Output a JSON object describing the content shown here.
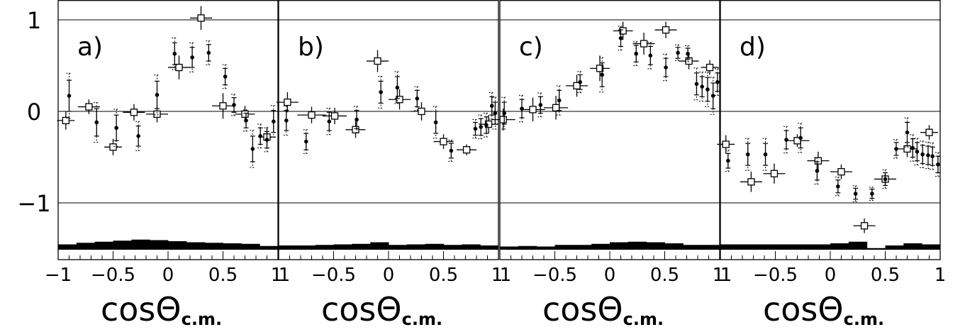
{
  "chart_data": {
    "type": "scatter",
    "y_ticks": [
      {
        "value": 1,
        "label": "1"
      },
      {
        "value": 0,
        "label": "0"
      },
      {
        "value": -1,
        "label": "−1"
      }
    ],
    "ylim": [
      -1.6,
      1.1
    ],
    "xlim": [
      -1,
      1
    ],
    "reference_lines": [
      1,
      0,
      -1
    ],
    "x_ticks": [
      [
        "−1",
        "−0.5",
        "0",
        "0.5",
        "1"
      ],
      [
        "1",
        "−0.5",
        "0",
        "0.5",
        "1"
      ],
      [
        "1",
        "−0.5",
        "0",
        "0.5",
        "1"
      ],
      [
        "1",
        "−0.5",
        "0",
        "0.5",
        "1"
      ]
    ],
    "xlabel": "cosΘ",
    "xlabel_subscript": "c.m.",
    "panels": [
      {
        "label": "a)",
        "filled": [
          {
            "x": -0.9,
            "y": 0.17,
            "e": 0.17
          },
          {
            "x": -0.65,
            "y": -0.12,
            "e": 0.15
          },
          {
            "x": -0.47,
            "y": -0.18,
            "e": 0.14
          },
          {
            "x": -0.27,
            "y": -0.27,
            "e": 0.11
          },
          {
            "x": -0.1,
            "y": 0.18,
            "e": 0.15
          },
          {
            "x": 0.06,
            "y": 0.63,
            "e": 0.12
          },
          {
            "x": 0.22,
            "y": 0.59,
            "e": 0.11
          },
          {
            "x": 0.37,
            "y": 0.64,
            "e": 0.09
          },
          {
            "x": 0.52,
            "y": 0.38,
            "e": 0.09
          },
          {
            "x": 0.6,
            "y": 0.07,
            "e": 0.08
          },
          {
            "x": 0.71,
            "y": -0.1,
            "e": 0.08
          },
          {
            "x": 0.77,
            "y": -0.41,
            "e": 0.14
          },
          {
            "x": 0.84,
            "y": -0.27,
            "e": 0.09
          },
          {
            "x": 0.9,
            "y": -0.31,
            "e": 0.09
          },
          {
            "x": 0.96,
            "y": -0.11,
            "e": 0.12
          }
        ],
        "open": [
          {
            "x": -0.93,
            "y": -0.1,
            "xe": 0.08,
            "ye": 0.1
          },
          {
            "x": -0.72,
            "y": 0.05,
            "xe": 0.1,
            "ye": 0.08
          },
          {
            "x": -0.5,
            "y": -0.39,
            "xe": 0.08,
            "ye": 0.09
          },
          {
            "x": -0.31,
            "y": -0.01,
            "xe": 0.1,
            "ye": 0.09
          },
          {
            "x": -0.1,
            "y": -0.03,
            "xe": 0.1,
            "ye": 0.09
          },
          {
            "x": 0.1,
            "y": 0.48,
            "xe": 0.1,
            "ye": 0.13
          },
          {
            "x": 0.3,
            "y": 1.02,
            "xe": 0.1,
            "ye": 0.13
          },
          {
            "x": 0.5,
            "y": 0.06,
            "xe": 0.1,
            "ye": 0.14
          },
          {
            "x": 0.7,
            "y": -0.03,
            "xe": 0.09,
            "ye": 0.09
          },
          {
            "x": 0.9,
            "y": -0.28,
            "xe": 0.08,
            "ye": 0.11
          }
        ],
        "hist": [
          0.1,
          0.13,
          0.15,
          0.17,
          0.19,
          0.18,
          0.16,
          0.14,
          0.13,
          0.12,
          0.11,
          0.07
        ]
      },
      {
        "label": "b)",
        "filled": [
          {
            "x": -0.93,
            "y": -0.1,
            "e": 0.11
          },
          {
            "x": -0.75,
            "y": -0.33,
            "e": 0.09
          },
          {
            "x": -0.54,
            "y": -0.11,
            "e": 0.1
          },
          {
            "x": -0.29,
            "y": -0.09,
            "e": 0.1
          },
          {
            "x": -0.07,
            "y": 0.21,
            "e": 0.12
          },
          {
            "x": 0.08,
            "y": 0.26,
            "e": 0.12
          },
          {
            "x": 0.26,
            "y": 0.14,
            "e": 0.09
          },
          {
            "x": 0.43,
            "y": -0.12,
            "e": 0.12
          },
          {
            "x": 0.57,
            "y": -0.43,
            "e": 0.08
          },
          {
            "x": 0.79,
            "y": -0.19,
            "e": 0.07
          },
          {
            "x": 0.84,
            "y": -0.17,
            "e": 0.09
          },
          {
            "x": 0.89,
            "y": -0.15,
            "e": 0.09
          },
          {
            "x": 0.94,
            "y": 0.06,
            "e": 0.1
          },
          {
            "x": 0.97,
            "y": -0.02,
            "e": 0.12
          }
        ],
        "open": [
          {
            "x": -0.92,
            "y": 0.1,
            "xe": 0.1,
            "ye": 0.11
          },
          {
            "x": -0.7,
            "y": -0.04,
            "xe": 0.13,
            "ye": 0.09
          },
          {
            "x": -0.49,
            "y": -0.05,
            "xe": 0.11,
            "ye": 0.09
          },
          {
            "x": -0.3,
            "y": -0.2,
            "xe": 0.09,
            "ye": 0.09
          },
          {
            "x": -0.1,
            "y": 0.55,
            "xe": 0.1,
            "ye": 0.12
          },
          {
            "x": 0.1,
            "y": 0.13,
            "xe": 0.1,
            "ye": 0.11
          },
          {
            "x": 0.3,
            "y": 0.0,
            "xe": 0.1,
            "ye": 0.1
          },
          {
            "x": 0.5,
            "y": -0.33,
            "xe": 0.09,
            "ye": 0.08
          },
          {
            "x": 0.71,
            "y": -0.42,
            "xe": 0.09,
            "ye": 0.06
          },
          {
            "x": 0.91,
            "y": -0.14,
            "xe": 0.09,
            "ye": 0.1
          }
        ],
        "hist": [
          0.08,
          0.08,
          0.09,
          0.1,
          0.11,
          0.14,
          0.09,
          0.1,
          0.11,
          0.09,
          0.1,
          0.08
        ]
      },
      {
        "label": "c)",
        "filled": [
          {
            "x": -0.96,
            "y": -0.02,
            "e": 0.12
          },
          {
            "x": -0.8,
            "y": 0.03,
            "e": 0.1
          },
          {
            "x": -0.63,
            "y": 0.07,
            "e": 0.09
          },
          {
            "x": -0.46,
            "y": 0.12,
            "e": 0.11
          },
          {
            "x": -0.27,
            "y": 0.32,
            "e": 0.08
          },
          {
            "x": -0.07,
            "y": 0.4,
            "e": 0.13
          },
          {
            "x": 0.1,
            "y": 0.8,
            "e": 0.09
          },
          {
            "x": 0.24,
            "y": 0.63,
            "e": 0.09
          },
          {
            "x": 0.37,
            "y": 0.61,
            "e": 0.1
          },
          {
            "x": 0.51,
            "y": 0.48,
            "e": 0.1
          },
          {
            "x": 0.62,
            "y": 0.64,
            "e": 0.06
          },
          {
            "x": 0.71,
            "y": 0.63,
            "e": 0.06
          },
          {
            "x": 0.79,
            "y": 0.3,
            "e": 0.12
          },
          {
            "x": 0.84,
            "y": 0.27,
            "e": 0.11
          },
          {
            "x": 0.89,
            "y": 0.24,
            "e": 0.13
          },
          {
            "x": 0.94,
            "y": 0.17,
            "e": 0.14
          },
          {
            "x": 0.98,
            "y": 0.32,
            "e": 0.1
          }
        ],
        "open": [
          {
            "x": -0.97,
            "y": -0.09,
            "xe": 0.11,
            "ye": 0.12
          },
          {
            "x": -0.7,
            "y": 0.02,
            "xe": 0.11,
            "ye": 0.13
          },
          {
            "x": -0.49,
            "y": 0.04,
            "xe": 0.11,
            "ye": 0.13
          },
          {
            "x": -0.3,
            "y": 0.28,
            "xe": 0.1,
            "ye": 0.12
          },
          {
            "x": -0.09,
            "y": 0.47,
            "xe": 0.09,
            "ye": 0.14
          },
          {
            "x": 0.12,
            "y": 0.88,
            "xe": 0.09,
            "ye": 0.1
          },
          {
            "x": 0.31,
            "y": 0.74,
            "xe": 0.1,
            "ye": 0.12
          },
          {
            "x": 0.51,
            "y": 0.89,
            "xe": 0.1,
            "ye": 0.09
          },
          {
            "x": 0.72,
            "y": 0.55,
            "xe": 0.09,
            "ye": 0.09
          },
          {
            "x": 0.91,
            "y": 0.48,
            "xe": 0.08,
            "ye": 0.08
          }
        ],
        "hist": [
          0.06,
          0.07,
          0.06,
          0.09,
          0.09,
          0.11,
          0.14,
          0.15,
          0.14,
          0.12,
          0.09,
          0.09
        ]
      },
      {
        "label": "d)",
        "filled": [
          {
            "x": -0.93,
            "y": -0.54,
            "e": 0.08
          },
          {
            "x": -0.75,
            "y": -0.47,
            "e": 0.12
          },
          {
            "x": -0.59,
            "y": -0.47,
            "e": 0.12
          },
          {
            "x": -0.4,
            "y": -0.31,
            "e": 0.1
          },
          {
            "x": -0.27,
            "y": -0.29,
            "e": 0.11
          },
          {
            "x": -0.12,
            "y": -0.65,
            "e": 0.1
          },
          {
            "x": 0.07,
            "y": -0.82,
            "e": 0.07
          },
          {
            "x": 0.23,
            "y": -0.9,
            "e": 0.06
          },
          {
            "x": 0.38,
            "y": -0.9,
            "e": 0.05
          },
          {
            "x": 0.5,
            "y": -0.74,
            "e": 0.07
          },
          {
            "x": 0.6,
            "y": -0.41,
            "e": 0.07
          },
          {
            "x": 0.7,
            "y": -0.23,
            "e": 0.11
          },
          {
            "x": 0.75,
            "y": -0.4,
            "e": 0.1
          },
          {
            "x": 0.79,
            "y": -0.44,
            "e": 0.1
          },
          {
            "x": 0.84,
            "y": -0.47,
            "e": 0.1
          },
          {
            "x": 0.89,
            "y": -0.48,
            "e": 0.1
          },
          {
            "x": 0.93,
            "y": -0.49,
            "e": 0.1
          },
          {
            "x": 0.98,
            "y": -0.58,
            "e": 0.09
          }
        ],
        "open": [
          {
            "x": -0.95,
            "y": -0.36,
            "xe": 0.08,
            "ye": 0.1
          },
          {
            "x": -0.72,
            "y": -0.77,
            "xe": 0.1,
            "ye": 0.11
          },
          {
            "x": -0.51,
            "y": -0.68,
            "xe": 0.1,
            "ye": 0.11
          },
          {
            "x": -0.3,
            "y": -0.32,
            "xe": 0.11,
            "ye": 0.07
          },
          {
            "x": -0.11,
            "y": -0.54,
            "xe": 0.1,
            "ye": 0.1
          },
          {
            "x": 0.1,
            "y": -0.66,
            "xe": 0.1,
            "ye": 0.08
          },
          {
            "x": 0.31,
            "y": -1.25,
            "xe": 0.1,
            "ye": 0.08
          },
          {
            "x": 0.5,
            "y": -0.74,
            "xe": 0.1,
            "ye": 0.07
          },
          {
            "x": 0.7,
            "y": -0.41,
            "xe": 0.09,
            "ye": 0.09
          },
          {
            "x": 0.9,
            "y": -0.23,
            "xe": 0.08,
            "ye": 0.08
          }
        ],
        "hist": [
          0.1,
          0.1,
          0.1,
          0.1,
          0.1,
          0.1,
          0.12,
          0.15,
          0.03,
          0.08,
          0.12,
          0.1
        ]
      }
    ]
  }
}
